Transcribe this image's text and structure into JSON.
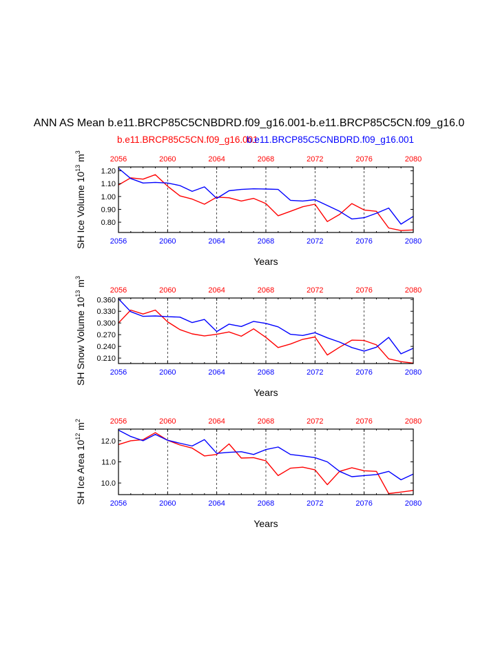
{
  "title": "ANN AS Mean b.e11.BRCP85C5CNBDRD.f09_g16.001-b.e11.BRCP85C5CN.f09_g16.0",
  "case_red": "b.e11.BRCP85C5CN.f09_g16.001",
  "case_blue": "b.e11.BRCP85C5CNBDRD.f09_g16.001",
  "colors": {
    "red": "#ff0000",
    "blue": "#0000ff",
    "axis": "#000000"
  },
  "chart_data": [
    {
      "type": "line",
      "ylabel": "SH Ice Volume 10",
      "ylabel_exp": "13",
      "ylabel_unit": "m",
      "ylabel_unit_exp": "3",
      "xlabel": "Years",
      "xlim": [
        2056,
        2080
      ],
      "ylim": [
        0.72,
        1.23
      ],
      "xticks": [
        2056,
        2060,
        2064,
        2068,
        2072,
        2076,
        2080
      ],
      "yticks": [
        0.8,
        0.9,
        1.0,
        1.1,
        1.2
      ],
      "ytick_labels": [
        "0.80",
        "0.90",
        "1.00",
        "1.10",
        "1.20"
      ],
      "x": [
        2056,
        2057,
        2058,
        2059,
        2060,
        2061,
        2062,
        2063,
        2064,
        2065,
        2066,
        2067,
        2068,
        2069,
        2070,
        2071,
        2072,
        2073,
        2074,
        2075,
        2076,
        2077,
        2078,
        2079,
        2080
      ],
      "series": [
        {
          "color": "red",
          "values": [
            1.09,
            1.145,
            1.135,
            1.17,
            1.08,
            1.005,
            0.98,
            0.94,
            0.995,
            0.99,
            0.965,
            0.985,
            0.945,
            0.85,
            0.885,
            0.92,
            0.94,
            0.805,
            0.86,
            0.945,
            0.895,
            0.885,
            0.755,
            0.735,
            0.74
          ]
        },
        {
          "color": "blue",
          "values": [
            1.22,
            1.14,
            1.105,
            1.11,
            1.105,
            1.085,
            1.04,
            1.075,
            0.985,
            1.045,
            1.055,
            1.06,
            1.058,
            1.055,
            0.97,
            0.965,
            0.975,
            0.93,
            0.885,
            0.825,
            0.835,
            0.87,
            0.91,
            0.785,
            0.845
          ]
        }
      ]
    },
    {
      "type": "line",
      "ylabel": "SH Snow Volume 10",
      "ylabel_exp": "13",
      "ylabel_unit": "m",
      "ylabel_unit_exp": "3",
      "xlabel": "Years",
      "xlim": [
        2056,
        2080
      ],
      "ylim": [
        0.196,
        0.364
      ],
      "xticks": [
        2056,
        2060,
        2064,
        2068,
        2072,
        2076,
        2080
      ],
      "yticks": [
        0.21,
        0.24,
        0.27,
        0.3,
        0.33,
        0.36
      ],
      "ytick_labels": [
        "0.210",
        "0.240",
        "0.270",
        "0.300",
        "0.330",
        "0.360"
      ],
      "x": [
        2056,
        2057,
        2058,
        2059,
        2060,
        2061,
        2062,
        2063,
        2064,
        2065,
        2066,
        2067,
        2068,
        2069,
        2070,
        2071,
        2072,
        2073,
        2074,
        2075,
        2076,
        2077,
        2078,
        2079,
        2080
      ],
      "series": [
        {
          "color": "red",
          "values": [
            0.3,
            0.333,
            0.323,
            0.333,
            0.303,
            0.283,
            0.272,
            0.267,
            0.271,
            0.277,
            0.266,
            0.285,
            0.263,
            0.237,
            0.246,
            0.258,
            0.264,
            0.218,
            0.238,
            0.256,
            0.255,
            0.244,
            0.208,
            0.201,
            0.197
          ]
        },
        {
          "color": "blue",
          "values": [
            0.362,
            0.329,
            0.317,
            0.318,
            0.316,
            0.315,
            0.301,
            0.309,
            0.278,
            0.297,
            0.291,
            0.304,
            0.299,
            0.29,
            0.271,
            0.268,
            0.275,
            0.262,
            0.251,
            0.237,
            0.228,
            0.238,
            0.263,
            0.221,
            0.235
          ]
        }
      ]
    },
    {
      "type": "line",
      "ylabel": "SH Ice Area 10",
      "ylabel_exp": "12",
      "ylabel_unit": "m",
      "ylabel_unit_exp": "2",
      "xlabel": "Years",
      "xlim": [
        2056,
        2080
      ],
      "ylim": [
        9.45,
        12.55
      ],
      "xticks": [
        2056,
        2060,
        2064,
        2068,
        2072,
        2076,
        2080
      ],
      "yticks": [
        10.0,
        11.0,
        12.0
      ],
      "ytick_labels": [
        "10.0",
        "11.0",
        "12.0"
      ],
      "x": [
        2056,
        2057,
        2058,
        2059,
        2060,
        2061,
        2062,
        2063,
        2064,
        2065,
        2066,
        2067,
        2068,
        2069,
        2070,
        2071,
        2072,
        2073,
        2074,
        2075,
        2076,
        2077,
        2078,
        2079,
        2080
      ],
      "series": [
        {
          "color": "red",
          "values": [
            11.82,
            12.0,
            12.05,
            12.38,
            12.02,
            11.8,
            11.65,
            11.28,
            11.35,
            11.85,
            11.18,
            11.2,
            11.05,
            10.35,
            10.7,
            10.75,
            10.62,
            9.92,
            10.55,
            10.72,
            10.58,
            10.55,
            9.5,
            9.57,
            9.65
          ]
        },
        {
          "color": "blue",
          "values": [
            12.5,
            12.2,
            12.0,
            12.3,
            12.02,
            11.88,
            11.75,
            12.05,
            11.4,
            11.45,
            11.48,
            11.35,
            11.58,
            11.7,
            11.35,
            11.28,
            11.2,
            11.0,
            10.55,
            10.3,
            10.35,
            10.4,
            10.55,
            10.15,
            10.42
          ]
        }
      ]
    }
  ]
}
